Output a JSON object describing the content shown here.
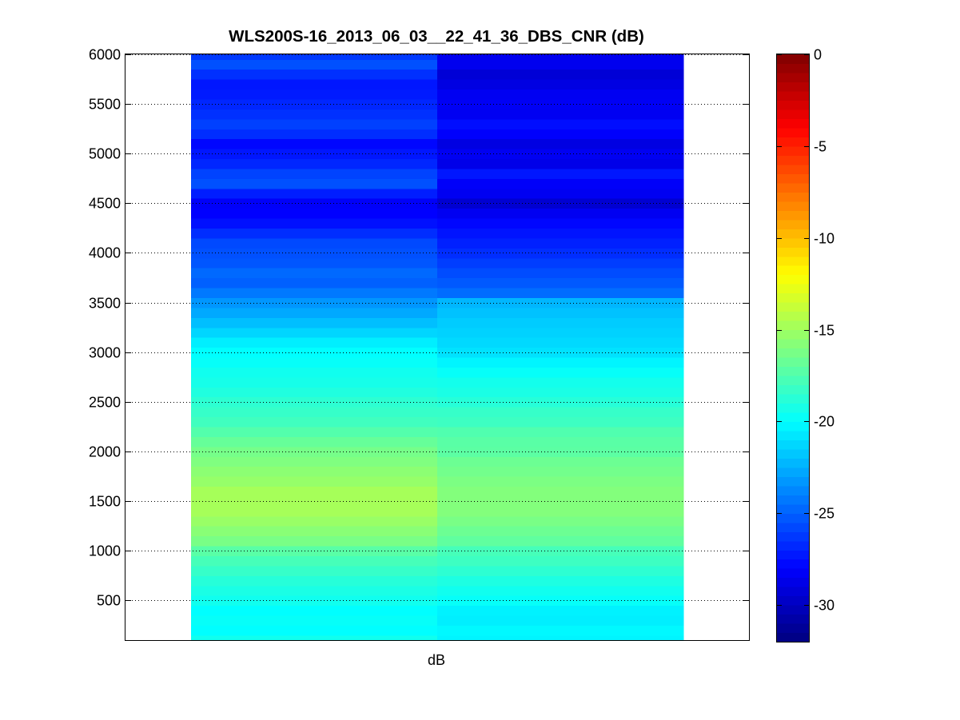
{
  "chart_data": {
    "type": "heatmap",
    "title": "WLS200S-16_2013_06_03__22_41_36_DBS_CNR (dB)",
    "xlabel": "dB",
    "ylabel": "",
    "ylim": [
      100,
      6000
    ],
    "yticks": [
      500,
      1000,
      1500,
      2000,
      2500,
      3000,
      3500,
      4000,
      4500,
      5000,
      5500,
      6000
    ],
    "grid": "horizontal dotted",
    "colormap": "jet",
    "clim": [
      -32,
      0
    ],
    "colorbar_ticks": [
      0,
      -5,
      -10,
      -15,
      -20,
      -25,
      -30
    ],
    "columns": 2,
    "row_step": 100,
    "column_values": [
      [
        -19.5,
        -20.0,
        -19.8,
        -20.0,
        -19.5,
        -19.2,
        -18.8,
        -18.3,
        -17.8,
        -17.2,
        -16.2,
        -15.7,
        -15.2,
        -14.8,
        -14.8,
        -14.8,
        -15.3,
        -15.6,
        -16.0,
        -16.3,
        -16.8,
        -17.4,
        -18.0,
        -18.3,
        -18.6,
        -19.0,
        -19.3,
        -19.5,
        -19.8,
        -20.0,
        -20.5,
        -21.3,
        -22.0,
        -22.7,
        -23.3,
        -24.2,
        -25.0,
        -24.7,
        -25.3,
        -25.5,
        -25.7,
        -26.6,
        -27.5,
        -28.0,
        -28.2,
        -27.1,
        -25.5,
        -25.9,
        -26.8,
        -27.3,
        -27.8,
        -26.6,
        -26.0,
        -26.5,
        -26.8,
        -27.2,
        -27.3,
        -26.5,
        -25.5,
        -26.2,
        -26.5,
        -24.7,
        -25.2,
        -24.5,
        -24.5,
        -26.0,
        -26.6,
        -26.7,
        -26.3,
        -26.8,
        -27.2,
        -26.5,
        -26.2,
        -27.1,
        -26.0,
        -25.8,
        -26.8,
        -27.2,
        -28.0,
        -27.6,
        -26.8,
        -25.6,
        -25.6,
        -28.6,
        -26.6,
        -26.6,
        -26.6,
        -26.6,
        -26.6,
        -26.6,
        -26.6,
        -26.6,
        -26.6,
        -26.6,
        -26.6,
        -26.6,
        -26.6,
        -26.6,
        -26.6
      ],
      [
        -20.3,
        -20.2,
        -20.5,
        -20.4,
        -19.8,
        -19.5,
        -19.1,
        -18.6,
        -18.1,
        -17.8,
        -17.0,
        -16.6,
        -16.2,
        -15.9,
        -15.9,
        -15.9,
        -16.1,
        -16.4,
        -16.6,
        -17.1,
        -17.2,
        -17.5,
        -18.1,
        -18.3,
        -18.8,
        -19.2,
        -19.4,
        -19.8,
        -20.3,
        -20.9,
        -21.2,
        -21.4,
        -21.6,
        -21.9,
        -22.3,
        -24.6,
        -25.2,
        -25.6,
        -26.1,
        -26.6,
        -27.0,
        -27.4,
        -27.8,
        -28.4,
        -29.4,
        -28.4,
        -28.2,
        -27.3,
        -28.7,
        -28.4,
        -28.9,
        -28.1,
        -27.6,
        -28.4,
        -28.3,
        -28.4,
        -28.9,
        -29.3,
        -28.5,
        -28.5,
        -28.7,
        -28.5,
        -28.1,
        -27.9,
        -28.3,
        -28.6,
        -28.7,
        -28.9,
        -28.3,
        -28.3,
        -28.7,
        -29.6,
        -29.1,
        -29.0,
        -29.2,
        -29.0,
        -29.1,
        -29.0,
        -28.9,
        -28.7,
        -28.6,
        -28.7,
        -28.8,
        -28.7,
        -29.0,
        -29.0,
        -29.0,
        -29.0,
        -29.0,
        -29.0,
        -29.0,
        -29.0,
        -29.0,
        -29.0,
        -29.0,
        -29.0,
        -29.0,
        -29.0,
        -29.0
      ]
    ]
  }
}
